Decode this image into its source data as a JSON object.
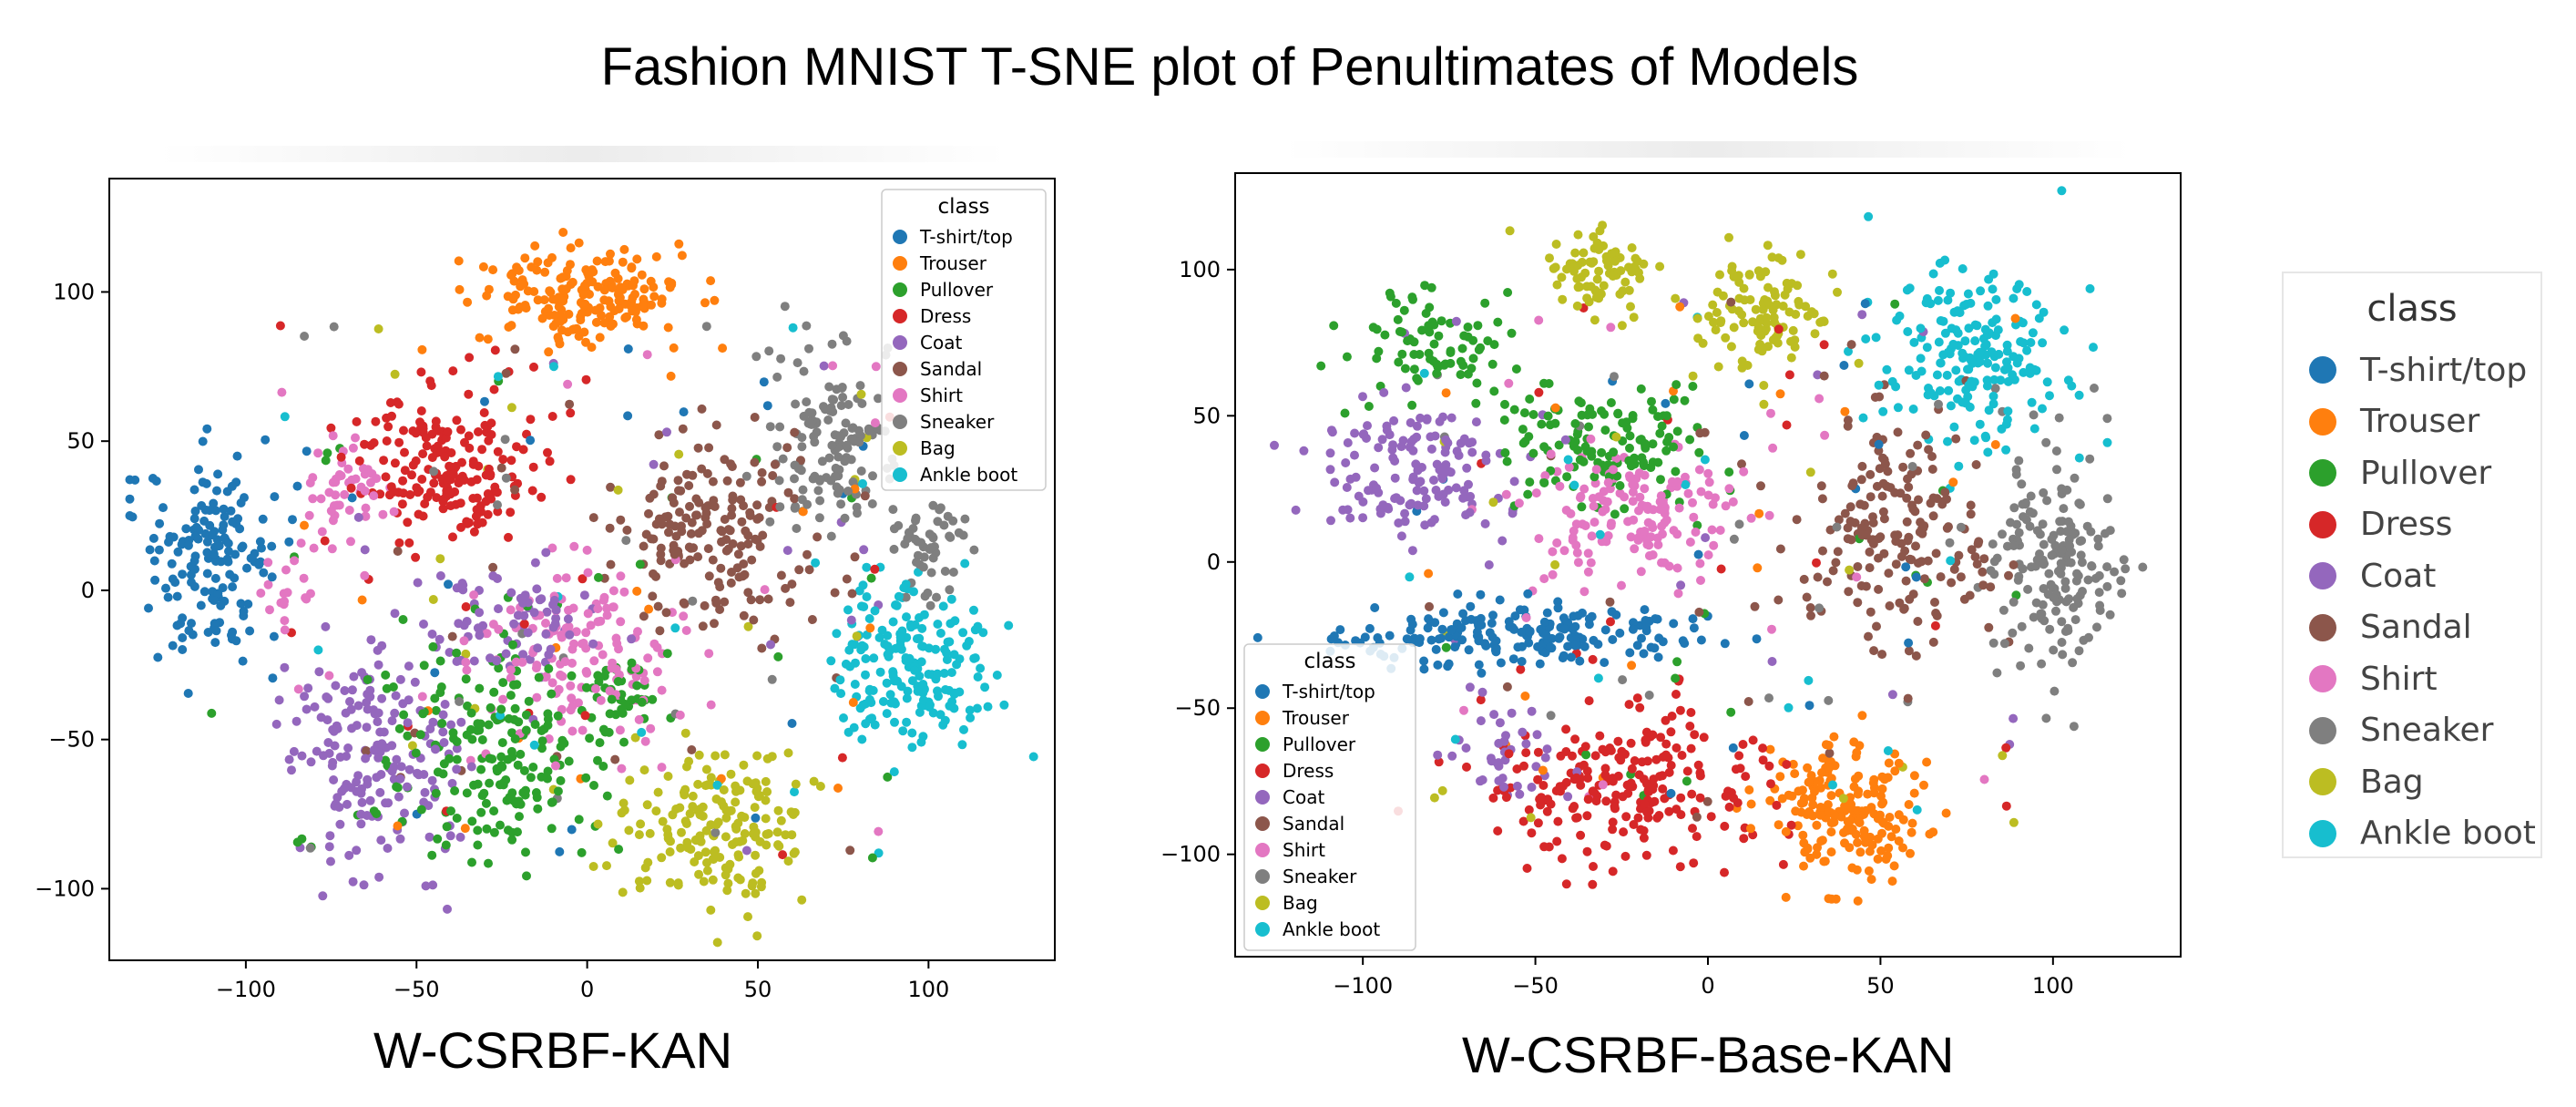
{
  "page_title": "Fashion MNIST T-SNE plot of Penultimates of Models",
  "legend_title": "class",
  "classes": [
    {
      "name": "T-shirt/top",
      "color": "#1f77b4"
    },
    {
      "name": "Trouser",
      "color": "#ff7f0e"
    },
    {
      "name": "Pullover",
      "color": "#2ca02c"
    },
    {
      "name": "Dress",
      "color": "#d62728"
    },
    {
      "name": "Coat",
      "color": "#9467bd"
    },
    {
      "name": "Sandal",
      "color": "#8c564b"
    },
    {
      "name": "Shirt",
      "color": "#e377c2"
    },
    {
      "name": "Sneaker",
      "color": "#7f7f7f"
    },
    {
      "name": "Bag",
      "color": "#bcbd22"
    },
    {
      "name": "Ankle boot",
      "color": "#17becf"
    }
  ],
  "chart_data": [
    {
      "type": "scatter",
      "title": "W-CSRBF-KAN",
      "xlim": [
        -140,
        137
      ],
      "ylim": [
        -124,
        138
      ],
      "xticks": [
        -100,
        -50,
        0,
        50,
        100
      ],
      "yticks": [
        -100,
        -50,
        0,
        50,
        100
      ],
      "xtick_labels": [
        "−100",
        "−50",
        "0",
        "50",
        "100"
      ],
      "ytick_labels": [
        "−100",
        "−50",
        "0",
        "50",
        "100"
      ],
      "grid": false,
      "legend_position": "top-right",
      "series": [
        {
          "name": "T-shirt/top",
          "clusters": [
            {
              "cx": -110,
              "cy": 12,
              "rx": 22,
              "ry": 38,
              "n": 160
            }
          ]
        },
        {
          "name": "Trouser",
          "clusters": [
            {
              "cx": -2,
              "cy": 98,
              "rx": 34,
              "ry": 18,
              "n": 190
            }
          ]
        },
        {
          "name": "Pullover",
          "clusters": [
            {
              "cx": -28,
              "cy": -55,
              "rx": 38,
              "ry": 40,
              "n": 200
            },
            {
              "cx": 10,
              "cy": -35,
              "rx": 12,
              "ry": 15,
              "n": 40
            }
          ]
        },
        {
          "name": "Dress",
          "clusters": [
            {
              "cx": -40,
              "cy": 42,
              "rx": 28,
              "ry": 30,
              "n": 190
            }
          ]
        },
        {
          "name": "Coat",
          "clusters": [
            {
              "cx": -62,
              "cy": -55,
              "rx": 28,
              "ry": 45,
              "n": 180
            },
            {
              "cx": -20,
              "cy": -10,
              "rx": 28,
              "ry": 20,
              "n": 70
            }
          ]
        },
        {
          "name": "Sandal",
          "clusters": [
            {
              "cx": 38,
              "cy": 20,
              "rx": 32,
              "ry": 35,
              "n": 180
            }
          ]
        },
        {
          "name": "Shirt",
          "clusters": [
            {
              "cx": -70,
              "cy": 35,
              "rx": 14,
              "ry": 20,
              "n": 50
            },
            {
              "cx": -5,
              "cy": -20,
              "rx": 32,
              "ry": 30,
              "n": 140
            },
            {
              "cx": -88,
              "cy": 0,
              "rx": 8,
              "ry": 18,
              "n": 20
            }
          ]
        },
        {
          "name": "Sneaker",
          "clusters": [
            {
              "cx": 70,
              "cy": 50,
              "rx": 20,
              "ry": 32,
              "n": 140
            },
            {
              "cx": 100,
              "cy": 15,
              "rx": 12,
              "ry": 18,
              "n": 50
            }
          ]
        },
        {
          "name": "Bag",
          "clusters": [
            {
              "cx": 40,
              "cy": -80,
              "rx": 32,
              "ry": 30,
              "n": 180
            }
          ]
        },
        {
          "name": "Ankle boot",
          "clusters": [
            {
              "cx": 95,
              "cy": -25,
              "rx": 25,
              "ry": 30,
              "n": 190
            }
          ]
        }
      ]
    },
    {
      "type": "scatter",
      "title": "W-CSRBF-Base-KAN",
      "xlim": [
        -137,
        137
      ],
      "ylim": [
        -135,
        133
      ],
      "xticks": [
        -100,
        -50,
        0,
        50,
        100
      ],
      "yticks": [
        -100,
        -50,
        0,
        50,
        100
      ],
      "xtick_labels": [
        "−100",
        "−50",
        "0",
        "50",
        "100"
      ],
      "ytick_labels": [
        "−100",
        "−50",
        "0",
        "50",
        "100"
      ],
      "grid": false,
      "legend_position": "lower-left",
      "series": [
        {
          "name": "T-shirt/top",
          "clusters": [
            {
              "cx": -55,
              "cy": -25,
              "rx": 60,
              "ry": 12,
              "n": 200
            }
          ]
        },
        {
          "name": "Trouser",
          "clusters": [
            {
              "cx": 40,
              "cy": -85,
              "rx": 26,
              "ry": 28,
              "n": 190
            }
          ]
        },
        {
          "name": "Pullover",
          "clusters": [
            {
              "cx": -80,
              "cy": 75,
              "rx": 25,
              "ry": 20,
              "n": 80
            },
            {
              "cx": -30,
              "cy": 40,
              "rx": 35,
              "ry": 25,
              "n": 130
            }
          ]
        },
        {
          "name": "Dress",
          "clusters": [
            {
              "cx": -25,
              "cy": -75,
              "rx": 45,
              "ry": 28,
              "n": 220
            }
          ]
        },
        {
          "name": "Coat",
          "clusters": [
            {
              "cx": -85,
              "cy": 30,
              "rx": 30,
              "ry": 25,
              "n": 140
            },
            {
              "cx": -60,
              "cy": -65,
              "rx": 18,
              "ry": 20,
              "n": 40
            }
          ]
        },
        {
          "name": "Sandal",
          "clusters": [
            {
              "cx": 55,
              "cy": 10,
              "rx": 30,
              "ry": 40,
              "n": 180
            }
          ]
        },
        {
          "name": "Shirt",
          "clusters": [
            {
              "cx": -20,
              "cy": 15,
              "rx": 35,
              "ry": 25,
              "n": 150
            }
          ]
        },
        {
          "name": "Sneaker",
          "clusters": [
            {
              "cx": 100,
              "cy": 0,
              "rx": 22,
              "ry": 40,
              "n": 180
            }
          ]
        },
        {
          "name": "Bag",
          "clusters": [
            {
              "cx": -30,
              "cy": 100,
              "rx": 18,
              "ry": 14,
              "n": 80
            },
            {
              "cx": 15,
              "cy": 85,
              "rx": 20,
              "ry": 22,
              "n": 110
            }
          ]
        },
        {
          "name": "Ankle boot",
          "clusters": [
            {
              "cx": 75,
              "cy": 70,
              "rx": 32,
              "ry": 30,
              "n": 190
            }
          ]
        }
      ]
    }
  ]
}
